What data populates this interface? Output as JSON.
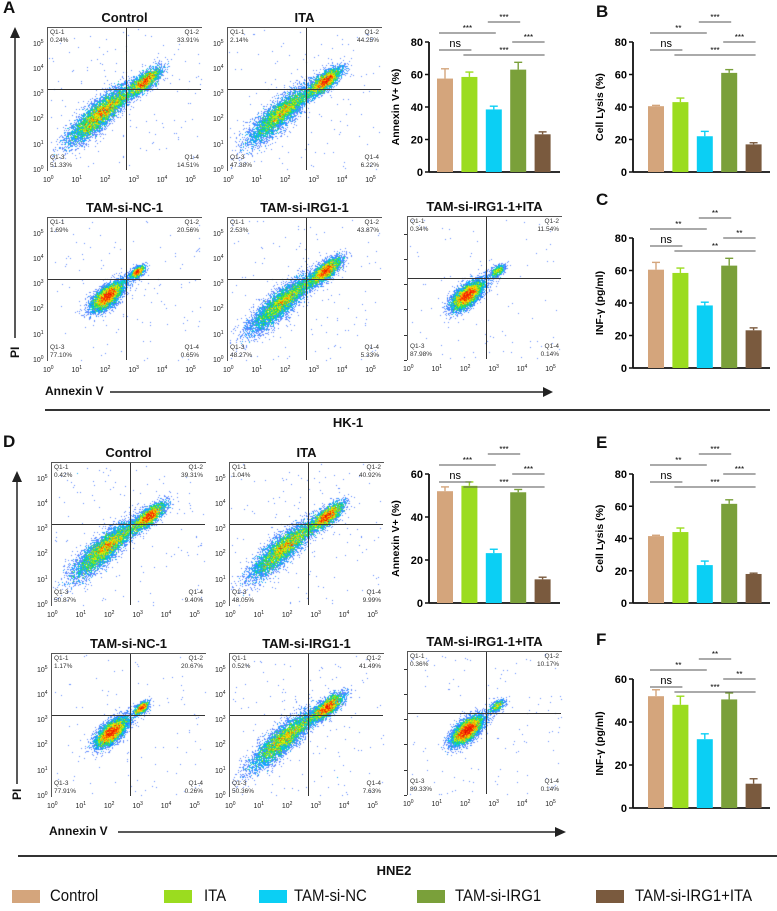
{
  "panels": {
    "A": "A",
    "B": "B",
    "C": "C",
    "D": "D",
    "E": "E",
    "F": "F"
  },
  "flow_axis": {
    "base": "10",
    "exponents": [
      "0",
      "1",
      "2",
      "3",
      "4",
      "5"
    ]
  },
  "hk1": {
    "cell_line": "HK-1",
    "y_axis": "PI",
    "x_axis": "Annexin V",
    "plots": [
      {
        "title": "Control",
        "quadrants": [
          {
            "name": "Q1-1",
            "value": "0.24%"
          },
          {
            "name": "Q1-2",
            "value": "33.91%"
          },
          {
            "name": "Q1-3",
            "value": "51.33%"
          },
          {
            "name": "Q1-4",
            "value": "14.51%"
          }
        ]
      },
      {
        "title": "ITA",
        "quadrants": [
          {
            "name": "Q1-1",
            "value": "2.14%"
          },
          {
            "name": "Q1-2",
            "value": "44.25%"
          },
          {
            "name": "Q1-3",
            "value": "47.38%"
          },
          {
            "name": "Q1-4",
            "value": "6.22%"
          }
        ]
      },
      {
        "title": "TAM-si-NC-1",
        "quadrants": [
          {
            "name": "Q1-1",
            "value": "1.69%"
          },
          {
            "name": "Q1-2",
            "value": "20.56%"
          },
          {
            "name": "Q1-3",
            "value": "77.10%"
          },
          {
            "name": "Q1-4",
            "value": "0.65%"
          }
        ]
      },
      {
        "title": "TAM-si-IRG1-1",
        "quadrants": [
          {
            "name": "Q1-1",
            "value": "2.53%"
          },
          {
            "name": "Q1-2",
            "value": "43.87%"
          },
          {
            "name": "Q1-3",
            "value": "48.27%"
          },
          {
            "name": "Q1-4",
            "value": "5.33%"
          }
        ]
      },
      {
        "title": "TAM-si-IRG1-1+ITA",
        "quadrants": [
          {
            "name": "Q1-1",
            "value": "0.34%"
          },
          {
            "name": "Q1-2",
            "value": "11.54%"
          },
          {
            "name": "Q1-3",
            "value": "87.98%"
          },
          {
            "name": "Q1-4",
            "value": "0.14%"
          }
        ]
      }
    ]
  },
  "hne2": {
    "cell_line": "HNE2",
    "y_axis": "PI",
    "x_axis": "Annexin V",
    "plots": [
      {
        "title": "Control",
        "quadrants": [
          {
            "name": "Q1-1",
            "value": "0.42%"
          },
          {
            "name": "Q1-2",
            "value": "39.31%"
          },
          {
            "name": "Q1-3",
            "value": "50.87%"
          },
          {
            "name": "Q1-4",
            "value": "9.40%"
          }
        ]
      },
      {
        "title": "ITA",
        "quadrants": [
          {
            "name": "Q1-1",
            "value": "1.04%"
          },
          {
            "name": "Q1-2",
            "value": "40.92%"
          },
          {
            "name": "Q1-3",
            "value": "48.05%"
          },
          {
            "name": "Q1-4",
            "value": "9.99%"
          }
        ]
      },
      {
        "title": "TAM-si-NC-1",
        "quadrants": [
          {
            "name": "Q1-1",
            "value": "1.17%"
          },
          {
            "name": "Q1-2",
            "value": "20.67%"
          },
          {
            "name": "Q1-3",
            "value": "77.91%"
          },
          {
            "name": "Q1-4",
            "value": "0.26%"
          }
        ]
      },
      {
        "title": "TAM-si-IRG1-1",
        "quadrants": [
          {
            "name": "Q1-1",
            "value": "0.52%"
          },
          {
            "name": "Q1-2",
            "value": "41.49%"
          },
          {
            "name": "Q1-3",
            "value": "50.36%"
          },
          {
            "name": "Q1-4",
            "value": "7.63%"
          }
        ]
      },
      {
        "title": "TAM-si-IRG1-1+ITA",
        "quadrants": [
          {
            "name": "Q1-1",
            "value": "0.36%"
          },
          {
            "name": "Q1-2",
            "value": "10.17%"
          },
          {
            "name": "Q1-3",
            "value": "89.33%"
          },
          {
            "name": "Q1-4",
            "value": "0.14%"
          }
        ]
      }
    ]
  },
  "legend": {
    "items": [
      {
        "label": "Control",
        "color": "#D4A57C"
      },
      {
        "label": "ITA",
        "color": "#9BDC1F"
      },
      {
        "label": "TAM-si-NC",
        "color": "#0BCFF4"
      },
      {
        "label": "TAM-si-IRG1",
        "color": "#7AA03A"
      },
      {
        "label": "TAM-si-IRG1+ITA",
        "color": "#7A5A3E"
      }
    ]
  },
  "chart_data": [
    {
      "panel": "A",
      "cell_line": "HK-1",
      "type": "bar",
      "ylabel": "Annexin V+ (%)",
      "ylim": [
        0,
        80
      ],
      "yticks": [
        "0",
        "20",
        "40",
        "60",
        "80"
      ],
      "categories": [
        "Control",
        "ITA",
        "TAM-si-NC",
        "TAM-si-IRG1",
        "TAM-si-IRG1+ITA"
      ],
      "values": [
        57.5,
        58.5,
        38.5,
        63,
        23.2
      ],
      "errors": [
        6,
        3,
        2,
        4.5,
        1.5
      ],
      "comparisons": [
        {
          "groups": [
            1,
            2
          ],
          "label": "ns"
        },
        {
          "groups": [
            1,
            3
          ],
          "label": "***"
        },
        {
          "groups": [
            3,
            4
          ],
          "label": "***"
        },
        {
          "groups": [
            4,
            5
          ],
          "label": "***"
        },
        {
          "groups": [
            2,
            5
          ],
          "label": "***"
        }
      ]
    },
    {
      "panel": "B",
      "cell_line": "HK-1",
      "type": "bar",
      "ylabel": "Cell Lysis (%)",
      "ylim": [
        0,
        80
      ],
      "yticks": [
        "0",
        "20",
        "40",
        "60",
        "80"
      ],
      "categories": [
        "Control",
        "ITA",
        "TAM-si-NC",
        "TAM-si-IRG1",
        "TAM-si-IRG1+ITA"
      ],
      "values": [
        40.5,
        43,
        22,
        61,
        17
      ],
      "errors": [
        0.5,
        2.5,
        3,
        2,
        1
      ],
      "comparisons": [
        {
          "groups": [
            1,
            2
          ],
          "label": "ns"
        },
        {
          "groups": [
            1,
            3
          ],
          "label": "**"
        },
        {
          "groups": [
            3,
            4
          ],
          "label": "***"
        },
        {
          "groups": [
            4,
            5
          ],
          "label": "***"
        },
        {
          "groups": [
            2,
            5
          ],
          "label": "***"
        }
      ]
    },
    {
      "panel": "C",
      "cell_line": "HK-1",
      "type": "bar",
      "ylabel": "INF-γ (pg/ml)",
      "ylim": [
        0,
        80
      ],
      "yticks": [
        "0",
        "20",
        "40",
        "60",
        "80"
      ],
      "categories": [
        "Control",
        "ITA",
        "TAM-si-NC",
        "TAM-si-IRG1",
        "TAM-si-IRG1+ITA"
      ],
      "values": [
        60.5,
        58.5,
        38.5,
        63,
        23.2
      ],
      "errors": [
        4.5,
        3,
        2,
        4.5,
        1.5
      ],
      "comparisons": [
        {
          "groups": [
            1,
            2
          ],
          "label": "ns"
        },
        {
          "groups": [
            1,
            3
          ],
          "label": "**"
        },
        {
          "groups": [
            3,
            4
          ],
          "label": "**"
        },
        {
          "groups": [
            4,
            5
          ],
          "label": "**"
        },
        {
          "groups": [
            2,
            5
          ],
          "label": "**"
        }
      ]
    },
    {
      "panel": "D",
      "cell_line": "HNE2",
      "type": "bar",
      "ylabel": "Annexin V+ (%)",
      "ylim": [
        0,
        60
      ],
      "yticks": [
        "0",
        "20",
        "40",
        "60"
      ],
      "categories": [
        "Control",
        "ITA",
        "TAM-si-NC",
        "TAM-si-IRG1",
        "TAM-si-IRG1+ITA"
      ],
      "values": [
        52,
        54.5,
        23.2,
        51.5,
        11
      ],
      "errors": [
        2,
        1.8,
        1.8,
        1.3,
        1
      ],
      "comparisons": [
        {
          "groups": [
            1,
            2
          ],
          "label": "ns"
        },
        {
          "groups": [
            1,
            3
          ],
          "label": "***"
        },
        {
          "groups": [
            3,
            4
          ],
          "label": "***"
        },
        {
          "groups": [
            4,
            5
          ],
          "label": "***"
        },
        {
          "groups": [
            2,
            5
          ],
          "label": "***"
        }
      ]
    },
    {
      "panel": "E",
      "cell_line": "HNE2",
      "type": "bar",
      "ylabel": "Cell Lysis (%)",
      "ylim": [
        0,
        80
      ],
      "yticks": [
        "0",
        "20",
        "40",
        "60",
        "80"
      ],
      "categories": [
        "Control",
        "ITA",
        "TAM-si-NC",
        "TAM-si-IRG1",
        "TAM-si-IRG1+ITA"
      ],
      "values": [
        41.5,
        44,
        23.5,
        61.5,
        18
      ],
      "errors": [
        0.5,
        2.5,
        2.5,
        2.5,
        0.5
      ],
      "comparisons": [
        {
          "groups": [
            1,
            2
          ],
          "label": "ns"
        },
        {
          "groups": [
            1,
            3
          ],
          "label": "**"
        },
        {
          "groups": [
            3,
            4
          ],
          "label": "***"
        },
        {
          "groups": [
            4,
            5
          ],
          "label": "***"
        },
        {
          "groups": [
            2,
            5
          ],
          "label": "***"
        }
      ]
    },
    {
      "panel": "F",
      "cell_line": "HNE2",
      "type": "bar",
      "ylabel": "INF-γ (pg/ml)",
      "ylim": [
        0,
        60
      ],
      "yticks": [
        "0",
        "20",
        "40",
        "60"
      ],
      "categories": [
        "Control",
        "ITA",
        "TAM-si-NC",
        "TAM-si-IRG1",
        "TAM-si-IRG1+ITA"
      ],
      "values": [
        52,
        48,
        32,
        50.5,
        11.3
      ],
      "errors": [
        3,
        4,
        2.5,
        3,
        2.3
      ],
      "comparisons": [
        {
          "groups": [
            1,
            2
          ],
          "label": "ns"
        },
        {
          "groups": [
            1,
            3
          ],
          "label": "**"
        },
        {
          "groups": [
            3,
            4
          ],
          "label": "**"
        },
        {
          "groups": [
            4,
            5
          ],
          "label": "**"
        },
        {
          "groups": [
            2,
            5
          ],
          "label": "***"
        }
      ]
    }
  ]
}
